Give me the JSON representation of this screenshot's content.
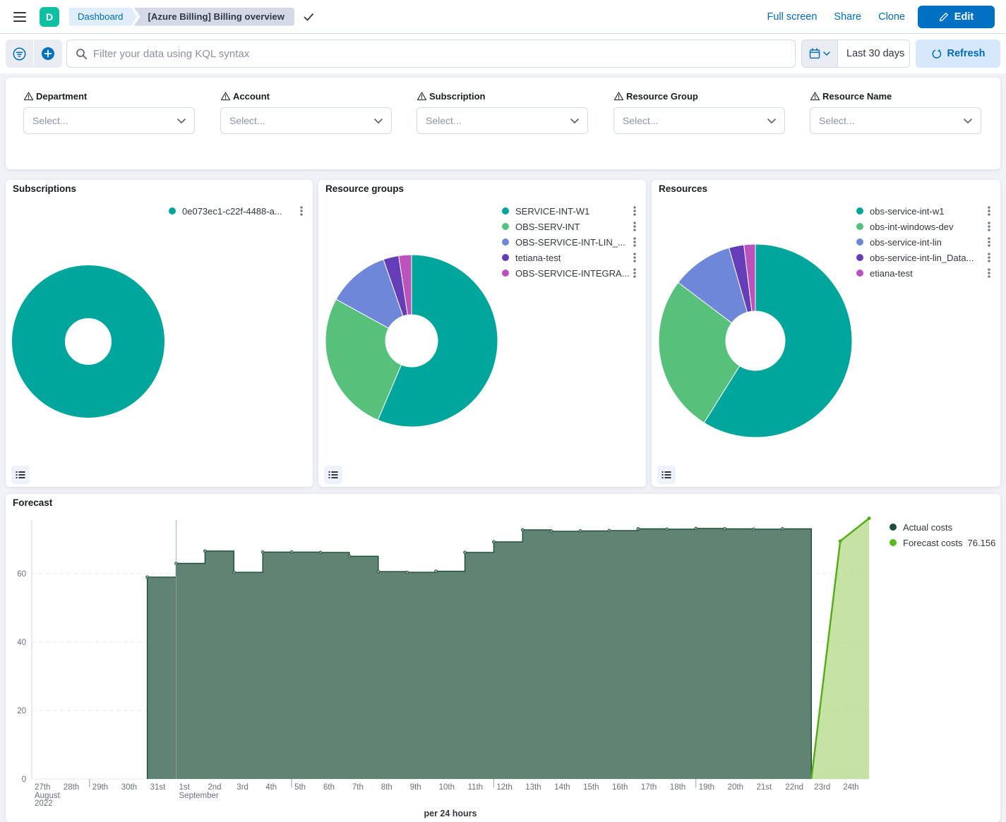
{
  "header": {
    "app_initial": "D",
    "breadcrumbs": {
      "root": "Dashboard",
      "current": "[Azure Billing] Billing overview"
    },
    "links": {
      "full_screen": "Full screen",
      "share": "Share",
      "clone": "Clone"
    },
    "edit_button": "Edit"
  },
  "toolbar": {
    "search_placeholder": "Filter your data using KQL syntax",
    "time_range_label": "Last 30 days",
    "refresh_label": "Refresh"
  },
  "filters": {
    "items": [
      {
        "label": "Department",
        "value": "Select..."
      },
      {
        "label": "Account",
        "value": "Select..."
      },
      {
        "label": "Subscription",
        "value": "Select..."
      },
      {
        "label": "Resource Group",
        "value": "Select..."
      },
      {
        "label": "Resource Name",
        "value": "Select..."
      }
    ]
  },
  "palette": [
    "#00a69b",
    "#57c17b",
    "#6f87d8",
    "#663db8",
    "#bc52bc"
  ],
  "icons": {
    "menu": "hamburger-icon",
    "search": "magnifier-icon",
    "filter": "filter-circle-icon",
    "add_filter": "plus-circle-icon",
    "calendar": "calendar-icon",
    "chevron_down": "chevron-down-icon",
    "refresh": "refresh-icon",
    "edit": "pencil-icon",
    "saved": "check-icon",
    "warning": "warning-triangle-icon",
    "legend_actions": "dots-vertical-icon",
    "legend_toggle": "list-icon"
  },
  "chart_data": [
    {
      "id": "subscriptions",
      "type": "pie",
      "title": "Subscriptions",
      "labels": [
        "0e073ec1-c22f-4488-a..."
      ],
      "values": [
        100
      ],
      "colors": [
        "#00a69b"
      ],
      "legend_position": "right"
    },
    {
      "id": "resource_groups",
      "type": "pie",
      "title": "Resource groups",
      "labels": [
        "SERVICE-INT-W1",
        "OBS-SERV-INT",
        "OBS-SERVICE-INT-LIN_...",
        "tetiana-test",
        "OBS-SERVICE-INTEGRA..."
      ],
      "values": [
        56.4,
        26.6,
        11.7,
        2.9,
        2.4
      ],
      "colors": [
        "#00a69b",
        "#57c17b",
        "#6f87d8",
        "#663db8",
        "#bc52bc"
      ],
      "legend_position": "right"
    },
    {
      "id": "resources",
      "type": "pie",
      "title": "Resources",
      "labels": [
        "obs-service-int-w1",
        "obs-int-windows-dev",
        "obs-service-int-lin",
        "obs-service-int-lin_Data...",
        "etiana-test"
      ],
      "values": [
        58.9,
        26.4,
        10.3,
        2.5,
        1.9
      ],
      "colors": [
        "#00a69b",
        "#57c17b",
        "#6f87d8",
        "#663db8",
        "#bc52bc"
      ],
      "legend_position": "right"
    },
    {
      "id": "forecast",
      "type": "area",
      "title": "Forecast",
      "xlabel": "per 24 hours",
      "ylim": [
        0,
        76.2
      ],
      "yticks": [
        0,
        20,
        40,
        60
      ],
      "grid": true,
      "legend_position": "right",
      "categories": [
        "27th",
        "28th",
        "29th",
        "30th",
        "31st",
        "1st",
        "2nd",
        "3rd",
        "4th",
        "5th",
        "6th",
        "7th",
        "8th",
        "9th",
        "10th",
        "11th",
        "12th",
        "13th",
        "14th",
        "15th",
        "16th",
        "17th",
        "18th",
        "19th",
        "20th",
        "21st",
        "22nd",
        "23rd",
        "24th"
      ],
      "month_sublabels": [
        {
          "index": 0,
          "lines": [
            "August",
            "2022"
          ]
        },
        {
          "index": 5,
          "lines": [
            "September"
          ]
        }
      ],
      "month_boundary_index": 5,
      "week_tick_indices": [
        2,
        9,
        16,
        23
      ],
      "series": [
        {
          "name": "Actual costs",
          "render": "step-area",
          "start_index": 4,
          "values": [
            59,
            63,
            66.6,
            60.4,
            66.3,
            66.3,
            66.2,
            65.1,
            60.6,
            60.4,
            60.7,
            66.2,
            69.3,
            72.8,
            72.4,
            72.5,
            72.6,
            73.1,
            73.0,
            73.2,
            73.1,
            73.0,
            73.1
          ],
          "line_color": "#1d4e38",
          "fill_color": "#547a69"
        },
        {
          "name": "Forecast costs",
          "render": "line-area",
          "value_label": "76.156",
          "points": [
            {
              "x": 27,
              "y": 0
            },
            {
              "x": 28,
              "y": 69.5
            },
            {
              "x": 29,
              "y": 76.156
            }
          ],
          "line_color": "#54ae17",
          "fill_color": "#b8dc8e"
        }
      ],
      "legend": [
        {
          "label": "Actual costs",
          "value": "",
          "color": "#1d4e38"
        },
        {
          "label": "Forecast costs",
          "value": "76.156",
          "color": "#5bbb1e"
        }
      ]
    }
  ]
}
